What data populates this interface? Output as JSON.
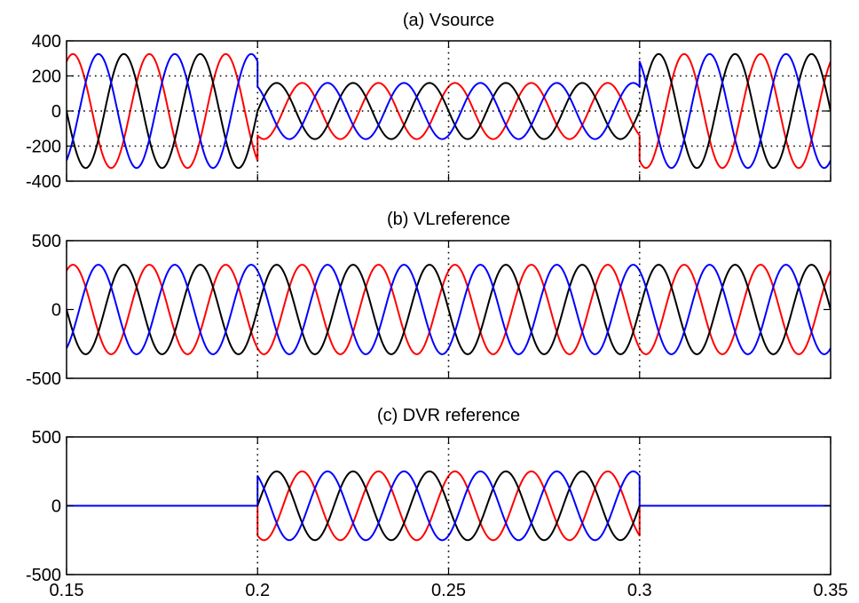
{
  "chart_data": [
    {
      "type": "line",
      "title": "(a) Vsource",
      "xlabel": "",
      "ylabel": "",
      "xlim": [
        0.15,
        0.35
      ],
      "ylim": [
        -400,
        400
      ],
      "yticks": [
        "400",
        "200",
        "0",
        "-200",
        "-400"
      ],
      "ytick_values": [
        400,
        200,
        0,
        -200,
        -400
      ],
      "xticks": [],
      "grid": {
        "x": [
          0.2,
          0.25,
          0.3
        ],
        "y": [
          200,
          0,
          -200
        ]
      },
      "frequency_hz": 50,
      "series": [
        {
          "color": "#ff0000",
          "phase_deg": -120,
          "segments": [
            {
              "t0": 0.15,
              "t1": 0.2,
              "amp": 325
            },
            {
              "t0": 0.2,
              "t1": 0.3,
              "amp": 160
            },
            {
              "t0": 0.3,
              "t1": 0.35,
              "amp": 325
            }
          ]
        },
        {
          "color": "#000000",
          "phase_deg": 0,
          "segments": [
            {
              "t0": 0.15,
              "t1": 0.2,
              "amp": 325
            },
            {
              "t0": 0.2,
              "t1": 0.3,
              "amp": 160
            },
            {
              "t0": 0.3,
              "t1": 0.35,
              "amp": 325
            }
          ]
        },
        {
          "color": "#0000ff",
          "phase_deg": 120,
          "segments": [
            {
              "t0": 0.15,
              "t1": 0.2,
              "amp": 325
            },
            {
              "t0": 0.2,
              "t1": 0.3,
              "amp": 160
            },
            {
              "t0": 0.3,
              "t1": 0.35,
              "amp": 325
            }
          ]
        }
      ]
    },
    {
      "type": "line",
      "title": "(b) VLreference",
      "xlabel": "",
      "ylabel": "",
      "xlim": [
        0.15,
        0.35
      ],
      "ylim": [
        -500,
        500
      ],
      "yticks": [
        "500",
        "0",
        "-500"
      ],
      "ytick_values": [
        500,
        0,
        -500
      ],
      "xticks": [],
      "grid": {
        "x": [
          0.2,
          0.25,
          0.3
        ],
        "y": []
      },
      "frequency_hz": 50,
      "series": [
        {
          "color": "#ff0000",
          "phase_deg": -120,
          "segments": [
            {
              "t0": 0.15,
              "t1": 0.35,
              "amp": 325
            }
          ]
        },
        {
          "color": "#000000",
          "phase_deg": 0,
          "segments": [
            {
              "t0": 0.15,
              "t1": 0.35,
              "amp": 325
            }
          ]
        },
        {
          "color": "#0000ff",
          "phase_deg": 120,
          "segments": [
            {
              "t0": 0.15,
              "t1": 0.35,
              "amp": 325
            }
          ]
        }
      ]
    },
    {
      "type": "line",
      "title": "(c) DVR reference",
      "xlabel": "",
      "ylabel": "",
      "xlim": [
        0.15,
        0.35
      ],
      "ylim": [
        -500,
        500
      ],
      "yticks": [
        "500",
        "0",
        "-500"
      ],
      "ytick_values": [
        500,
        0,
        -500
      ],
      "xticks": [
        "0.15",
        "0.2",
        "0.25",
        "0.3",
        "0.35"
      ],
      "xtick_values": [
        0.15,
        0.2,
        0.25,
        0.3,
        0.35
      ],
      "grid": {
        "x": [
          0.2,
          0.25,
          0.3
        ],
        "y": []
      },
      "frequency_hz": 50,
      "series": [
        {
          "color": "#ff0000",
          "phase_deg": -120,
          "segments": [
            {
              "t0": 0.15,
              "t1": 0.2,
              "amp": 0
            },
            {
              "t0": 0.2,
              "t1": 0.3,
              "amp": 250
            },
            {
              "t0": 0.3,
              "t1": 0.35,
              "amp": 0
            }
          ]
        },
        {
          "color": "#000000",
          "phase_deg": 0,
          "segments": [
            {
              "t0": 0.15,
              "t1": 0.2,
              "amp": 0
            },
            {
              "t0": 0.2,
              "t1": 0.3,
              "amp": 250
            },
            {
              "t0": 0.3,
              "t1": 0.35,
              "amp": 0
            }
          ]
        },
        {
          "color": "#0000ff",
          "phase_deg": 120,
          "segments": [
            {
              "t0": 0.15,
              "t1": 0.2,
              "amp": 0
            },
            {
              "t0": 0.2,
              "t1": 0.3,
              "amp": 250
            },
            {
              "t0": 0.3,
              "t1": 0.35,
              "amp": 0
            }
          ]
        }
      ]
    }
  ]
}
